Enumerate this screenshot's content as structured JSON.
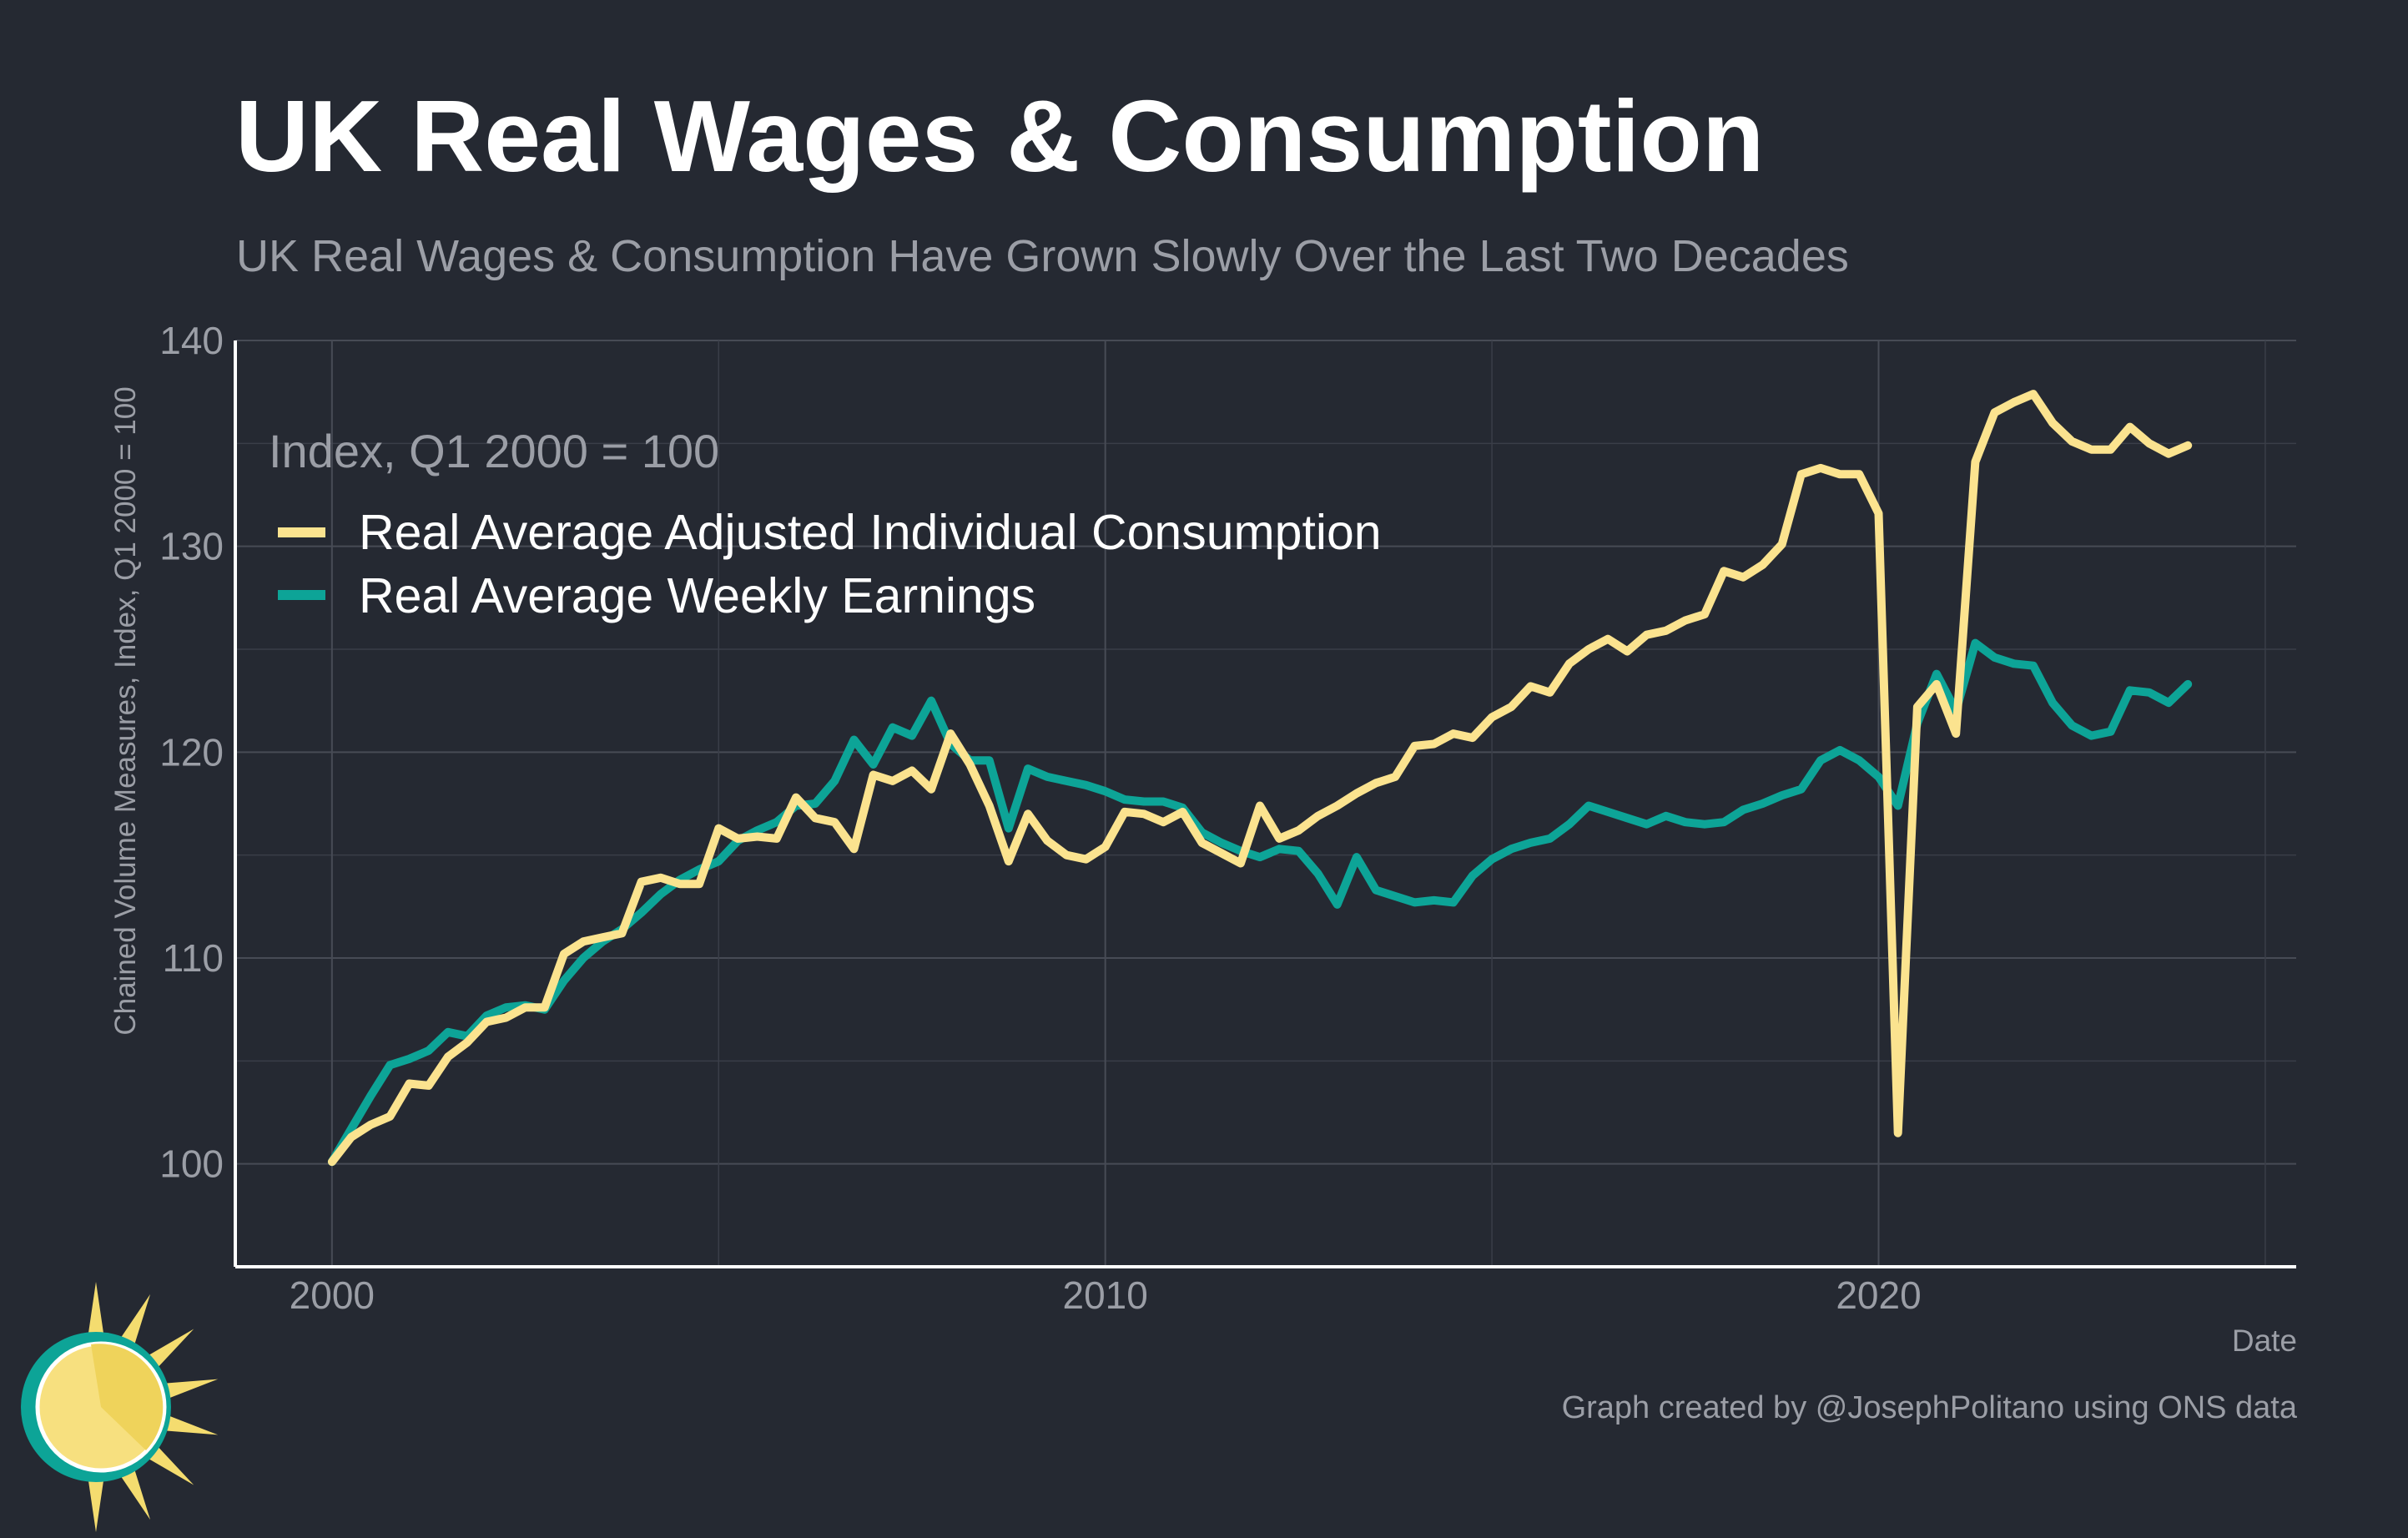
{
  "title": "UK Real Wages & Consumption",
  "subtitle": "UK Real Wages & Consumption Have Grown Slowly Over the Last Two Decades",
  "caption": "Graph created by @JosephPolitano using ONS data",
  "chart_data": {
    "type": "line",
    "title": "UK Real Wages & Consumption",
    "subtitle": "UK Real Wages & Consumption Have Grown Slowly Over the Last Two Decades",
    "xlabel": "Date",
    "ylabel": "Chained Volume Measures, Index, Q1 2000 = 100",
    "legend_title": "Index, Q1 2000 = 100",
    "legend_position": "top-left",
    "x_ticks": [
      "2000",
      "2010",
      "2020"
    ],
    "y_ticks": [
      100,
      110,
      120,
      130,
      140
    ],
    "xlim": [
      1998.75,
      2025.4
    ],
    "ylim": [
      95,
      140
    ],
    "grid": true,
    "x_start": 2000.0,
    "x_step": 0.25,
    "series": [
      {
        "name": "Real Average Adjusted Individual Consumption",
        "color": "#fbe38f",
        "values": [
          100.1,
          101.3,
          101.9,
          102.3,
          103.9,
          103.8,
          105.2,
          105.9,
          106.9,
          107.1,
          107.6,
          107.6,
          110.2,
          110.8,
          111.0,
          111.2,
          113.7,
          113.9,
          113.6,
          113.6,
          116.3,
          115.8,
          115.9,
          115.8,
          117.8,
          116.8,
          116.6,
          115.3,
          118.9,
          118.6,
          119.1,
          118.2,
          120.9,
          119.4,
          117.4,
          114.7,
          117.0,
          115.7,
          115.0,
          114.8,
          115.4,
          117.1,
          117.0,
          116.6,
          117.1,
          115.6,
          115.1,
          114.6,
          117.4,
          115.8,
          116.2,
          116.9,
          117.4,
          118.0,
          118.5,
          118.8,
          120.3,
          120.4,
          120.9,
          120.7,
          121.7,
          122.2,
          123.2,
          122.9,
          124.3,
          125.0,
          125.5,
          124.9,
          125.7,
          125.9,
          126.4,
          126.7,
          128.8,
          128.5,
          129.1,
          130.1,
          133.5,
          133.8,
          133.5,
          133.5,
          131.6,
          101.5,
          122.2,
          123.3,
          120.9,
          134.1,
          136.5,
          137.0,
          137.4,
          136.0,
          135.1,
          134.7,
          134.7,
          135.8,
          135.0,
          134.5,
          134.9
        ]
      },
      {
        "name": "Real Average Weekly Earnings",
        "color": "#0da497",
        "values": [
          100.1,
          101.7,
          103.3,
          104.8,
          105.1,
          105.5,
          106.4,
          106.2,
          107.2,
          107.6,
          107.7,
          107.5,
          108.9,
          110.0,
          110.8,
          111.4,
          112.2,
          113.1,
          113.8,
          114.3,
          114.7,
          115.7,
          116.2,
          116.6,
          117.4,
          117.5,
          118.6,
          120.6,
          119.4,
          121.2,
          120.8,
          122.5,
          120.4,
          119.6,
          119.6,
          116.3,
          119.2,
          118.8,
          118.6,
          118.4,
          118.1,
          117.7,
          117.6,
          117.6,
          117.3,
          116.1,
          115.6,
          115.2,
          114.9,
          115.3,
          115.2,
          114.1,
          112.6,
          114.9,
          113.3,
          113.0,
          112.7,
          112.8,
          112.7,
          114.0,
          114.8,
          115.3,
          115.6,
          115.8,
          116.5,
          117.4,
          117.1,
          116.8,
          116.5,
          116.9,
          116.6,
          116.5,
          116.6,
          117.2,
          117.5,
          117.9,
          118.2,
          119.6,
          120.1,
          119.6,
          118.8,
          117.4,
          121.4,
          123.8,
          122.0,
          125.3,
          124.6,
          124.3,
          124.2,
          122.4,
          121.3,
          120.8,
          121.0,
          123.0,
          122.9,
          122.4,
          123.3
        ]
      }
    ]
  }
}
